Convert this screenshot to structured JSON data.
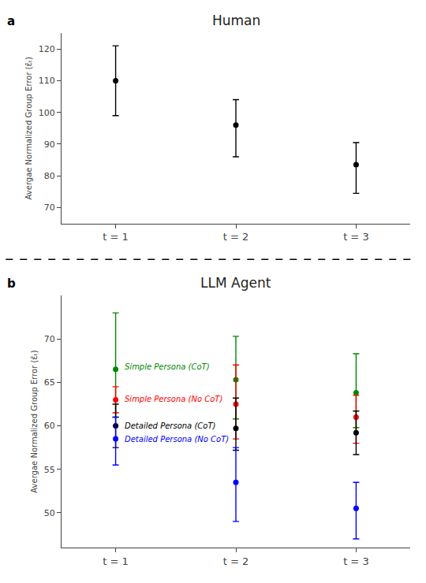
{
  "chart_data": [
    {
      "type": "scatter",
      "title": "Human",
      "x": [
        1,
        2,
        3
      ],
      "series": [
        {
          "values": [
            110,
            96,
            83.5
          ],
          "error_upper": [
            11,
            8,
            7
          ],
          "error_lower": [
            11,
            10,
            9
          ],
          "color": "black",
          "marker": "circle"
        }
      ],
      "xlim": [
        0.55,
        3.45
      ],
      "xticks": [
        {
          "value": 1,
          "label": "t = 1"
        },
        {
          "value": 2,
          "label": "t = 2"
        },
        {
          "value": 3,
          "label": "t = 3"
        }
      ],
      "ylim": [
        65,
        125
      ],
      "yticks": [
        70,
        80,
        90,
        100,
        110,
        120
      ],
      "ylabel": "Avergae Normalized Group Error (ε̄ₜ)",
      "grid": false,
      "annotations": [
        {
          "text": "a"
        }
      ]
    },
    {
      "type": "scatter",
      "title": "LLM Agent",
      "x": [
        1,
        2,
        3
      ],
      "series": [
        {
          "values": [
            66.5,
            65.3,
            63.8
          ],
          "error_upper": [
            6.5,
            5.0,
            4.5
          ],
          "error_lower": [
            5.5,
            4.5,
            4.0
          ],
          "color": "#008800",
          "marker": "circle"
        },
        {
          "values": [
            63.0,
            62.5,
            61.0
          ],
          "error_upper": [
            1.5,
            4.5,
            2.5
          ],
          "error_lower": [
            1.5,
            4.0,
            3.0
          ],
          "color": "red",
          "marker": "circle"
        },
        {
          "values": [
            60.0,
            59.7,
            59.2
          ],
          "error_upper": [
            2.5,
            3.5,
            2.5
          ],
          "error_lower": [
            2.5,
            2.5,
            2.5
          ],
          "color": "black",
          "marker": "circle"
        },
        {
          "values": [
            58.5,
            53.5,
            50.5
          ],
          "error_upper": [
            2.5,
            4.0,
            3.0
          ],
          "error_lower": [
            3.0,
            4.5,
            3.5
          ],
          "color": "blue",
          "marker": "circle"
        }
      ],
      "xlim": [
        0.55,
        3.45
      ],
      "xticks": [
        {
          "value": 1,
          "label": "t = 1"
        },
        {
          "value": 2,
          "label": "t = 2"
        },
        {
          "value": 3,
          "label": "t = 3"
        }
      ],
      "ylim": [
        46,
        75
      ],
      "yticks": [
        50,
        55,
        60,
        65,
        70
      ],
      "ylabel": "Avergae Normalized Group Error (ε̄ₜ)",
      "grid": false,
      "annotations": [
        {
          "text": "b"
        },
        {
          "x": 1.06,
          "y": 67.5,
          "text": "Simple Persona (CoT)",
          "color": "#008800"
        },
        {
          "x": 1.06,
          "y": 63.8,
          "text": "Simple Persona (No CoT)",
          "color": "red"
        },
        {
          "x": 1.06,
          "y": 60.7,
          "text": "Detailed Persona (CoT)",
          "color": "black"
        },
        {
          "x": 1.06,
          "y": 59.1,
          "text": "Detailed Persona (No CoT)",
          "color": "blue"
        }
      ]
    }
  ]
}
